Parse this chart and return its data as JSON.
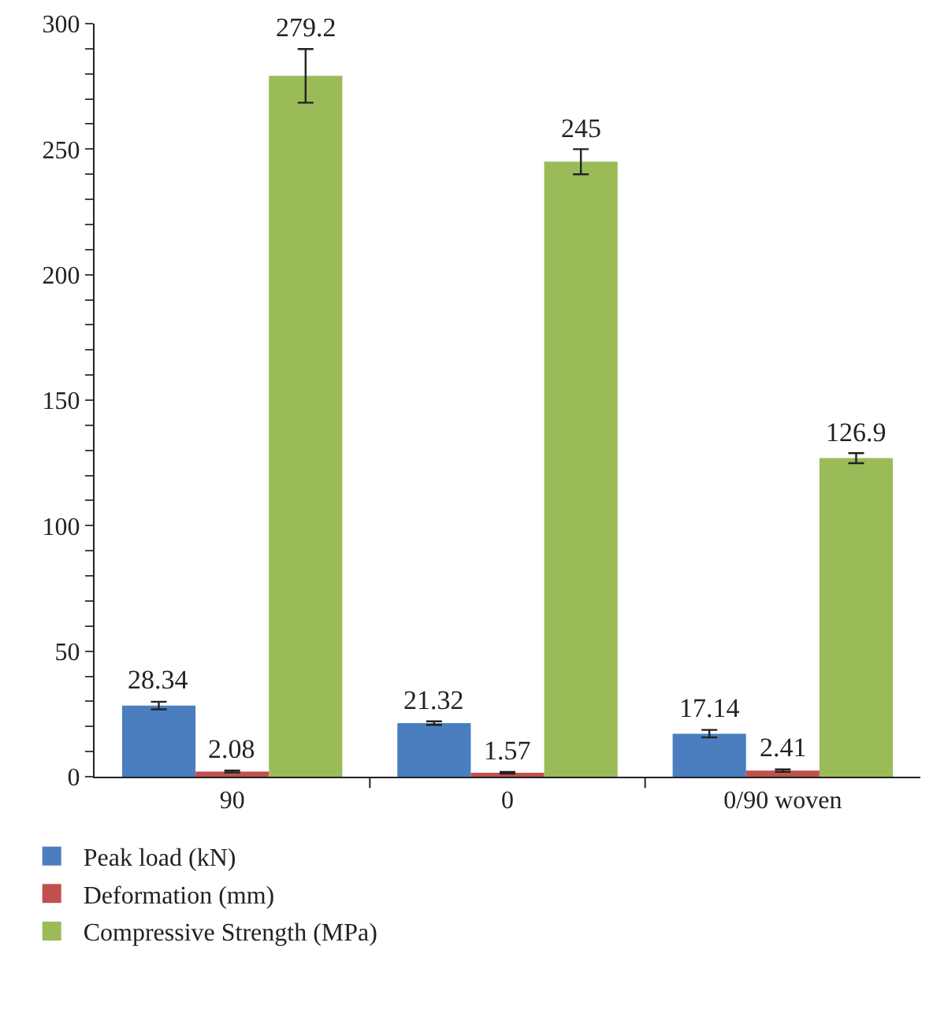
{
  "chart_data": {
    "type": "bar",
    "categories": [
      "90",
      "0",
      "0/90 woven"
    ],
    "series": [
      {
        "name": "Peak load (kN)",
        "color": "#4a7ebf",
        "values": [
          28.34,
          21.32,
          17.14
        ],
        "errors": [
          1.5,
          0.7,
          1.5
        ]
      },
      {
        "name": "Deformation (mm)",
        "color": "#c0504d",
        "values": [
          2.08,
          1.57,
          2.41
        ],
        "errors": [
          0.4,
          0.3,
          0.5
        ]
      },
      {
        "name": "Compressive Strength (MPa)",
        "color": "#9bbb59",
        "values": [
          279.2,
          245,
          126.9
        ],
        "errors": [
          10.7,
          5,
          2
        ]
      }
    ],
    "ylim": [
      0,
      300
    ],
    "yticks": [
      0,
      {
        "value": 10,
        "label": null
      },
      {
        "value": 20,
        "label": null
      },
      {
        "value": 30,
        "label": null
      },
      {
        "value": 40,
        "label": null
      },
      50,
      {
        "value": 60,
        "label": null
      },
      {
        "value": 70,
        "label": null
      },
      {
        "value": 80,
        "label": null
      },
      {
        "value": 90,
        "label": null
      },
      100,
      {
        "value": 110,
        "label": null
      },
      {
        "value": 120,
        "label": null
      },
      {
        "value": 130,
        "label": null
      },
      {
        "value": 140,
        "label": null
      },
      150,
      {
        "value": 160,
        "label": null
      },
      {
        "value": 170,
        "label": null
      },
      {
        "value": 180,
        "label": null
      },
      {
        "value": 190,
        "label": null
      },
      200,
      {
        "value": 210,
        "label": null
      },
      {
        "value": 220,
        "label": null
      },
      {
        "value": 230,
        "label": null
      },
      {
        "value": 240,
        "label": null
      },
      250,
      {
        "value": 260,
        "label": null
      },
      {
        "value": 270,
        "label": null
      },
      {
        "value": 280,
        "label": null
      },
      {
        "value": 290,
        "label": null
      },
      300
    ],
    "data_labels": true,
    "legend": "bottom"
  }
}
